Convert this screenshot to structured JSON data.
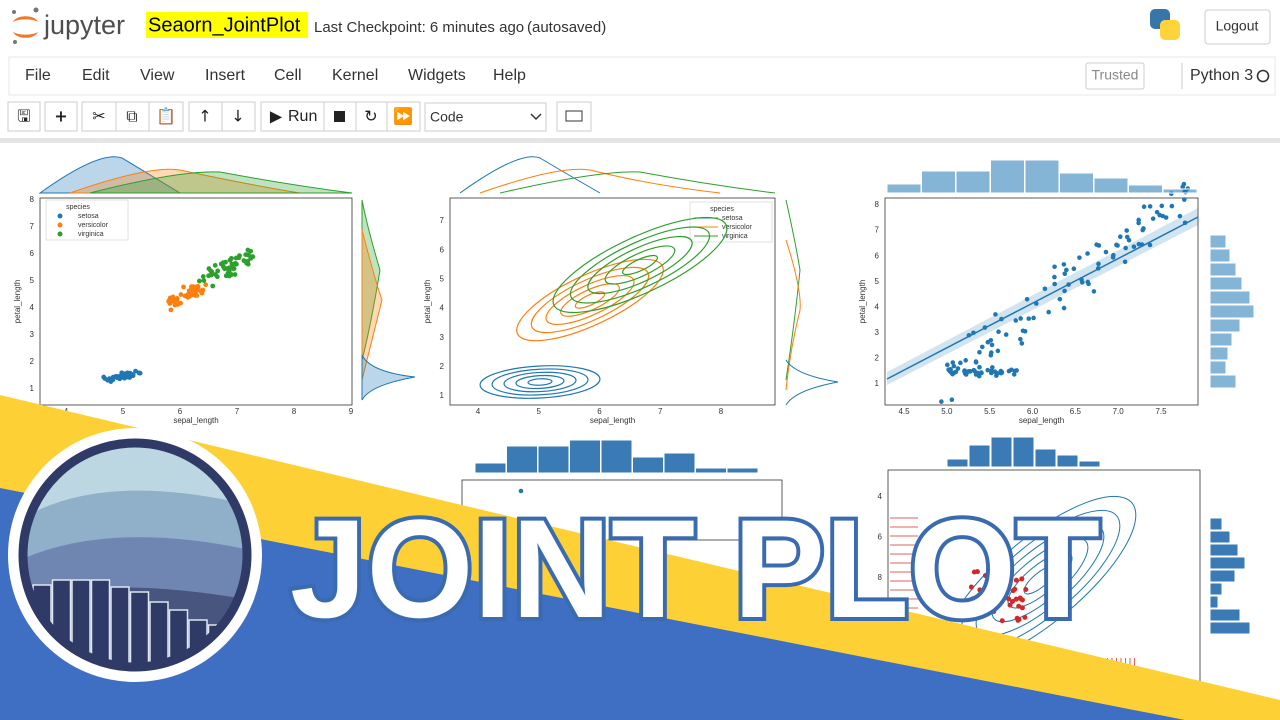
{
  "header": {
    "logo": "jupyter",
    "notebook_name": "Seaorn_JointPlot",
    "checkpoint": "Last Checkpoint: 6 minutes ago",
    "autosave": "(autosaved)",
    "logout": "Logout"
  },
  "menu": [
    "File",
    "Edit",
    "View",
    "Insert",
    "Cell",
    "Kernel",
    "Widgets",
    "Help"
  ],
  "trusted": "Trusted",
  "kernel": "Python 3",
  "toolbar": {
    "run": "Run",
    "cell_type": "Code"
  },
  "plots": [
    {
      "xlabel": "sepal_length",
      "ylabel": "petal_length",
      "xticks": [
        4,
        5,
        6,
        7,
        8,
        9
      ],
      "yticks": [
        1,
        2,
        3,
        4,
        5,
        6,
        7,
        8
      ],
      "legend_title": "species",
      "legend": [
        "setosa",
        "versicolor",
        "virginica"
      ]
    },
    {
      "xlabel": "sepal_length",
      "ylabel": "petal_length",
      "xticks": [
        4,
        5,
        6,
        7,
        8
      ],
      "yticks": [
        1,
        2,
        3,
        4,
        5,
        6,
        7
      ],
      "legend_title": "species",
      "legend": [
        "setosa",
        "versicolor",
        "virginica"
      ]
    },
    {
      "xlabel": "sepal_length",
      "ylabel": "petal_length",
      "xticks": [
        4.5,
        {
          "value": 5,
          "label": "5.0"
        },
        5.5,
        {
          "value": 6,
          "label": "6.0"
        },
        6.5,
        {
          "value": 7,
          "label": "7.0"
        },
        7.5
      ],
      "yticks": [
        1,
        2,
        3,
        4,
        5,
        6,
        7,
        8
      ]
    },
    {
      "yticks": [
        4,
        6,
        8
      ]
    }
  ],
  "banner": "JOINT PLOT"
}
